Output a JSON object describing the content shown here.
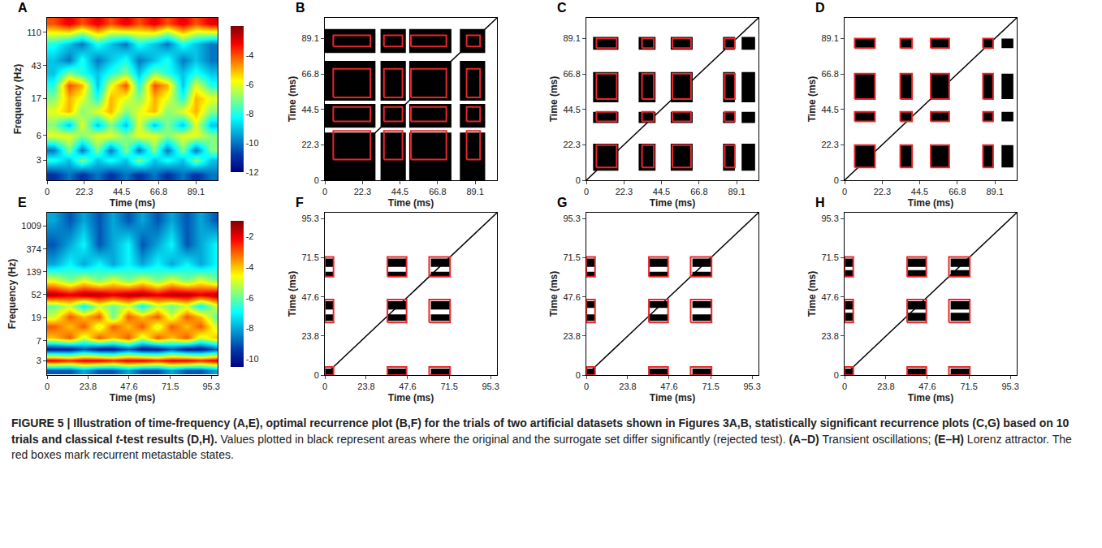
{
  "chart_data": [
    {
      "type": "heatmap",
      "panel": "A",
      "xlabel": "Time (ms)",
      "ylabel": "Frequency (Hz)",
      "log": "y",
      "xlim": [
        0,
        102
      ],
      "xticks": [
        0,
        22.3,
        44.5,
        66.8,
        89.1
      ],
      "ylim": [
        1.7,
        166
      ],
      "yticks": [
        3,
        6,
        17,
        43,
        110
      ],
      "x": [
        4,
        13,
        21,
        30,
        38,
        47,
        55,
        64,
        72,
        81,
        89,
        98
      ],
      "y": [
        2,
        3,
        4,
        6,
        8,
        12,
        17,
        25,
        35,
        50,
        80,
        140
      ],
      "z": [
        [
          -11,
          -10,
          -11,
          -10,
          -11,
          -10,
          -11,
          -10,
          -11,
          -10,
          -11,
          -10
        ],
        [
          -8,
          -9,
          -7,
          -9,
          -8,
          -9,
          -7,
          -9,
          -8,
          -9,
          -7,
          -9
        ],
        [
          -10,
          -7,
          -10,
          -7,
          -10,
          -7,
          -10,
          -7,
          -10,
          -7,
          -10,
          -7
        ],
        [
          -6,
          -6,
          -7,
          -6,
          -6,
          -7,
          -6,
          -6,
          -7,
          -6,
          -6,
          -7
        ],
        [
          -7,
          -9,
          -6,
          -9,
          -7,
          -9,
          -6,
          -9,
          -7,
          -9,
          -6,
          -9
        ],
        [
          -6,
          -5,
          -7,
          -6,
          -5,
          -7,
          -6,
          -5,
          -7,
          -6,
          -5,
          -7
        ],
        [
          -7,
          -5,
          -6,
          -8,
          -5,
          -6,
          -7,
          -5,
          -6,
          -8,
          -5,
          -6
        ],
        [
          -8,
          -4,
          -5,
          -9,
          -6,
          -4,
          -8,
          -4,
          -5,
          -9,
          -6,
          -8
        ],
        [
          -9,
          -7,
          -8,
          -9,
          -8,
          -7,
          -9,
          -7,
          -8,
          -9,
          -8,
          -9
        ],
        [
          -9,
          -10,
          -8,
          -10,
          -9,
          -8,
          -10,
          -9,
          -8,
          -10,
          -9,
          -10
        ],
        [
          -8,
          -9,
          -10,
          -8,
          -9,
          -10,
          -8,
          -9,
          -10,
          -8,
          -9,
          -10
        ],
        [
          -4,
          -3,
          -4,
          -3,
          -4,
          -3,
          -4,
          -3,
          -4,
          -3,
          -4,
          -3
        ]
      ],
      "colorbar": {
        "range": [
          -12,
          -2
        ],
        "ticks": [
          -12,
          -10,
          -8,
          -6,
          -4
        ]
      }
    },
    {
      "type": "recurrence",
      "panel": "B",
      "xlabel": "Time (ms)",
      "ylabel": "Time (ms)",
      "xlim": [
        0,
        102
      ],
      "xticks": [
        0,
        22.3,
        44.5,
        66.8,
        89.1
      ],
      "ylim": [
        0,
        102
      ],
      "yticks": [
        0,
        22.3,
        44.5,
        66.8,
        89.1
      ],
      "regions": {
        "x": [
          [
            0,
            30
          ],
          [
            33,
            48
          ],
          [
            50,
            75
          ],
          [
            80,
            95
          ]
        ],
        "y": [
          [
            0,
            30
          ],
          [
            33,
            48
          ],
          [
            50,
            75
          ],
          [
            80,
            95
          ]
        ]
      },
      "boxes": {
        "x": [
          [
            5,
            27
          ],
          [
            35,
            46
          ],
          [
            51,
            72
          ],
          [
            84,
            92
          ]
        ],
        "y": [
          [
            84,
            91
          ],
          [
            52,
            70
          ],
          [
            37,
            46
          ],
          [
            13,
            31
          ]
        ]
      }
    },
    {
      "type": "recurrence",
      "panel": "C",
      "xlabel": "Time (ms)",
      "ylabel": "Time (ms)",
      "xlim": [
        0,
        102
      ],
      "xticks": [
        0,
        22.3,
        44.5,
        66.8,
        89.1
      ],
      "ylim": [
        0,
        102
      ],
      "yticks": [
        0,
        22.3,
        44.5,
        66.8,
        89.1
      ],
      "regions": {
        "x": [
          [
            4,
            19
          ],
          [
            31,
            41
          ],
          [
            50,
            63
          ],
          [
            81,
            88
          ],
          [
            92,
            100
          ]
        ],
        "y": [
          [
            82,
            90
          ],
          [
            49,
            68
          ],
          [
            36,
            43
          ],
          [
            6,
            23
          ]
        ]
      },
      "boxes": {
        "x": [
          [
            6,
            18
          ],
          [
            33,
            40
          ],
          [
            51,
            62
          ],
          [
            82,
            88
          ]
        ],
        "y": [
          [
            83,
            89
          ],
          [
            51,
            67
          ],
          [
            37,
            43
          ],
          [
            8,
            22
          ]
        ]
      }
    },
    {
      "type": "recurrence",
      "panel": "D",
      "xlabel": "Time (ms)",
      "ylabel": "Time (ms)",
      "xlim": [
        0,
        102
      ],
      "xticks": [
        0,
        22.3,
        44.5,
        66.8,
        89.1
      ],
      "ylim": [
        0,
        102
      ],
      "yticks": [
        0,
        22.3,
        44.5,
        66.8,
        89.1
      ],
      "regions": {
        "x": [
          [
            6,
            18
          ],
          [
            33,
            40
          ],
          [
            51,
            62
          ],
          [
            82,
            88
          ],
          [
            93,
            100
          ]
        ],
        "y": [
          [
            83,
            89
          ],
          [
            51,
            67
          ],
          [
            37,
            43
          ],
          [
            8,
            22
          ]
        ]
      },
      "boxes": {
        "x": [
          [
            6,
            18
          ],
          [
            33,
            40
          ],
          [
            51,
            62
          ],
          [
            82,
            88
          ]
        ],
        "y": [
          [
            83,
            89
          ],
          [
            51,
            67
          ],
          [
            37,
            43
          ],
          [
            8,
            22
          ]
        ]
      }
    },
    {
      "type": "heatmap",
      "panel": "E",
      "xlabel": "Time (ms)",
      "ylabel": "Frequency (Hz)",
      "log": "y",
      "xlim": [
        0,
        99
      ],
      "xticks": [
        0,
        23.8,
        47.6,
        71.5,
        95.3
      ],
      "ylim": [
        1.6,
        1800
      ],
      "yticks": [
        3,
        7,
        19,
        52,
        139,
        374,
        1009
      ],
      "x": [
        4,
        13,
        21,
        30,
        38,
        47,
        55,
        64,
        72,
        81,
        89,
        98
      ],
      "y": [
        2,
        3,
        5,
        8,
        13,
        20,
        32,
        52,
        100,
        200,
        450,
        1300
      ],
      "z": [
        [
          -9,
          -9,
          -8,
          -9,
          -9,
          -8,
          -9,
          -9,
          -8,
          -9,
          -9,
          -8
        ],
        [
          -2,
          -2.5,
          -2,
          -2,
          -2.5,
          -2,
          -2,
          -2.5,
          -2,
          -2,
          -2.5,
          -2
        ],
        [
          -10,
          -10,
          -9,
          -10,
          -10,
          -9,
          -10,
          -10,
          -9,
          -10,
          -10,
          -9
        ],
        [
          -4,
          -3,
          -5,
          -3,
          -4,
          -3,
          -5,
          -3,
          -4,
          -3,
          -5,
          -4
        ],
        [
          -3,
          -4,
          -3,
          -5,
          -3,
          -4,
          -3,
          -5,
          -3,
          -4,
          -3,
          -5
        ],
        [
          -5,
          -3,
          -4,
          -3,
          -6,
          -3,
          -4,
          -3,
          -5,
          -3,
          -4,
          -6
        ],
        [
          -6,
          -5,
          -7,
          -5,
          -6,
          -5,
          -7,
          -5,
          -6,
          -5,
          -7,
          -5
        ],
        [
          -1.5,
          -2,
          -1.5,
          -1.5,
          -2,
          -1.5,
          -1.5,
          -2,
          -1.5,
          -1.5,
          -2,
          -1.5
        ],
        [
          -5,
          -6,
          -5,
          -6,
          -5,
          -6,
          -5,
          -6,
          -5,
          -6,
          -5,
          -6
        ],
        [
          -8,
          -7,
          -8,
          -7,
          -8,
          -7,
          -8,
          -7,
          -8,
          -7,
          -8,
          -7
        ],
        [
          -9,
          -8,
          -7,
          -9,
          -8,
          -7,
          -9,
          -8,
          -7,
          -9,
          -8,
          -7
        ],
        [
          -8,
          -9,
          -8,
          -9,
          -8,
          -9,
          -8,
          -9,
          -8,
          -9,
          -8,
          -9
        ]
      ],
      "colorbar": {
        "range": [
          -10.5,
          -1
        ],
        "ticks": [
          -10,
          -8,
          -6,
          -4,
          -2
        ]
      }
    },
    {
      "type": "recurrence",
      "panel": "F",
      "xlabel": "Time (ms)",
      "ylabel": "Time (ms)",
      "xlim": [
        0,
        99
      ],
      "xticks": [
        0,
        23.8,
        47.6,
        71.5,
        95.3
      ],
      "ylim": [
        0,
        99
      ],
      "yticks": [
        0,
        23.8,
        47.6,
        71.5,
        95.3
      ],
      "regions": {
        "x": [
          [
            0,
            5
          ],
          [
            36,
            47
          ],
          [
            61,
            72
          ]
        ],
        "y": [
          [
            0,
            4
          ],
          [
            33,
            37
          ],
          [
            40,
            45
          ],
          [
            60,
            63
          ],
          [
            66,
            71
          ]
        ]
      },
      "boxes": {
        "x": [
          [
            0,
            5
          ],
          [
            36,
            47
          ],
          [
            60,
            72
          ]
        ],
        "y": [
          [
            0,
            5
          ],
          [
            32,
            46
          ],
          [
            60,
            72
          ]
        ]
      }
    },
    {
      "type": "recurrence",
      "panel": "G",
      "xlabel": "Time (ms)",
      "ylabel": "Time (ms)",
      "xlim": [
        0,
        99
      ],
      "xticks": [
        0,
        23.8,
        47.6,
        71.5,
        95.3
      ],
      "ylim": [
        0,
        99
      ],
      "yticks": [
        0,
        23.8,
        47.6,
        71.5,
        95.3
      ],
      "regions": {
        "x": [
          [
            0,
            5
          ],
          [
            36,
            47
          ],
          [
            61,
            72
          ]
        ],
        "y": [
          [
            0,
            4
          ],
          [
            33,
            37
          ],
          [
            41,
            45
          ],
          [
            60,
            63
          ],
          [
            66,
            71
          ]
        ]
      },
      "boxes": {
        "x": [
          [
            0,
            5
          ],
          [
            36,
            47
          ],
          [
            60,
            72
          ]
        ],
        "y": [
          [
            0,
            5
          ],
          [
            32,
            46
          ],
          [
            60,
            72
          ]
        ]
      }
    },
    {
      "type": "recurrence",
      "panel": "H",
      "xlabel": "Time (ms)",
      "ylabel": "Time (ms)",
      "xlim": [
        0,
        99
      ],
      "xticks": [
        0,
        23.8,
        47.6,
        71.5,
        95.3
      ],
      "ylim": [
        0,
        99
      ],
      "yticks": [
        0,
        23.8,
        47.6,
        71.5,
        95.3
      ],
      "regions": {
        "x": [
          [
            0,
            5
          ],
          [
            36,
            47
          ],
          [
            61,
            72
          ]
        ],
        "y": [
          [
            0,
            4
          ],
          [
            33,
            38
          ],
          [
            40,
            45
          ],
          [
            60,
            64
          ],
          [
            66,
            71
          ]
        ]
      },
      "boxes": {
        "x": [
          [
            0,
            5
          ],
          [
            36,
            47
          ],
          [
            60,
            72
          ]
        ],
        "y": [
          [
            0,
            5
          ],
          [
            32,
            46
          ],
          [
            60,
            72
          ]
        ]
      }
    }
  ],
  "caption": [
    {
      "text": "FIGURE 5 | Illustration of time-frequency (A,E), optimal recurrence plot (B,F) for the trials of two artificial datasets shown in Figures 3A,B, statistically significant recurrence plots (C,G) based on 10 trials and classical ",
      "style": "bold"
    },
    {
      "text": "t",
      "style": "bold-italic"
    },
    {
      "text": "-test results (D,H).",
      "style": "bold"
    },
    {
      "text": " Values plotted in black represent areas where the original and the surrogate set differ significantly (rejected test). ",
      "style": "normal"
    },
    {
      "text": "(A–D)",
      "style": "bold"
    },
    {
      "text": " Transient oscillations; ",
      "style": "normal"
    },
    {
      "text": "(E–H)",
      "style": "bold"
    },
    {
      "text": " Lorenz attractor. The red boxes mark recurrent metastable states.",
      "style": "normal"
    }
  ]
}
